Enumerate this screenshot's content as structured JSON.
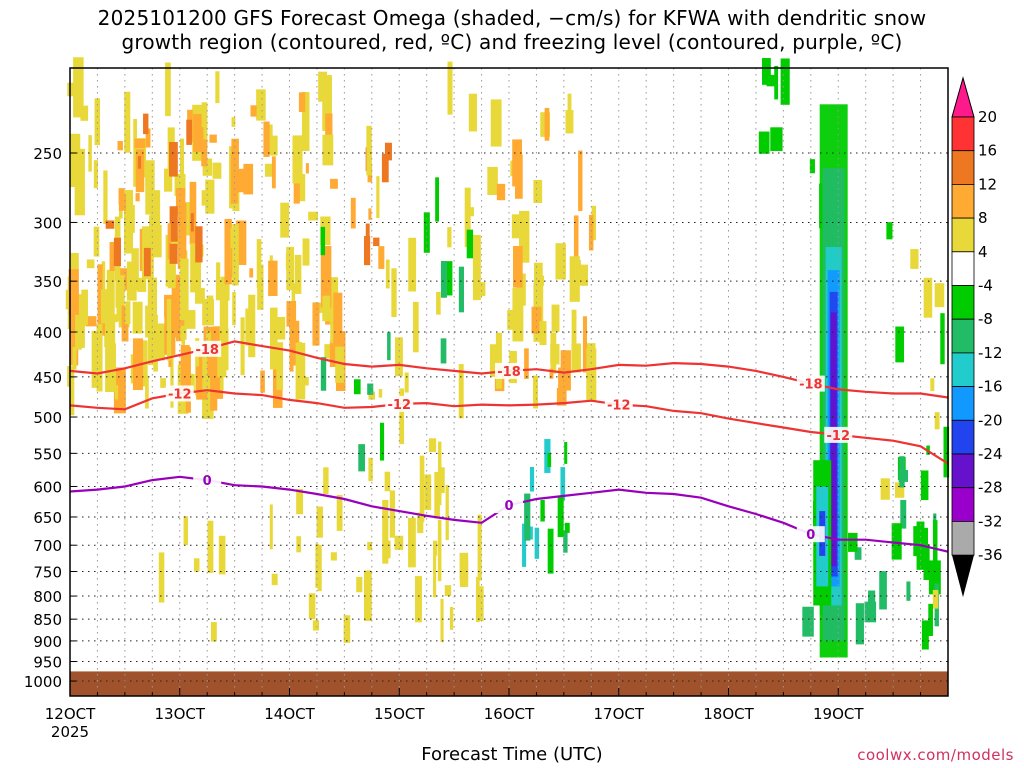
{
  "title": {
    "line1": "2025101200 GFS Forecast Omega (shaded, −cm/s) for KFWA with dendritic snow",
    "line2": "growth region (contoured, red, ºC) and freezing level (contoured, purple, ºC)"
  },
  "credit": "coolwx.com/models",
  "chart_data": {
    "type": "heatmap",
    "xlabel": "Forecast Time (UTC)",
    "x_ticks": [
      "12OCT",
      "13OCT",
      "14OCT",
      "15OCT",
      "16OCT",
      "17OCT",
      "18OCT",
      "19OCT"
    ],
    "x_year_label": "2025",
    "x_range_hours": [
      0,
      192
    ],
    "y_ticks": [
      250,
      300,
      350,
      400,
      450,
      500,
      550,
      600,
      650,
      700,
      750,
      800,
      850,
      900,
      950,
      1000
    ],
    "y_range_hPa": [
      200,
      1040
    ],
    "colorbar": {
      "ticks": [
        20,
        16,
        12,
        8,
        4,
        -4,
        -8,
        -12,
        -16,
        -20,
        -24,
        -28,
        -32,
        -36
      ],
      "colors": [
        "#ff1a8c",
        "#ff3333",
        "#ee7722",
        "#ffaa33",
        "#e8d83a",
        "#ffffff",
        "#00cc00",
        "#22bb66",
        "#22cccc",
        "#1199ff",
        "#2244ee",
        "#6611cc",
        "#9900cc",
        "#aaaaaa"
      ]
    },
    "contours": [
      {
        "kind": "dendritic",
        "color": "#ee3333",
        "labels": [
          "-18",
          "-18",
          "-18"
        ],
        "points": [
          [
            0,
            443
          ],
          [
            6,
            446
          ],
          [
            12,
            440
          ],
          [
            18,
            432
          ],
          [
            24,
            425
          ],
          [
            30,
            418
          ],
          [
            36,
            410
          ],
          [
            42,
            415
          ],
          [
            48,
            420
          ],
          [
            54,
            428
          ],
          [
            60,
            435
          ],
          [
            66,
            438
          ],
          [
            72,
            436
          ],
          [
            78,
            440
          ],
          [
            84,
            443
          ],
          [
            90,
            446
          ],
          [
            96,
            443
          ],
          [
            102,
            441
          ],
          [
            108,
            445
          ],
          [
            114,
            441
          ],
          [
            120,
            436
          ],
          [
            126,
            437
          ],
          [
            132,
            434
          ],
          [
            138,
            435
          ],
          [
            144,
            438
          ],
          [
            150,
            443
          ],
          [
            156,
            450
          ],
          [
            162,
            458
          ],
          [
            168,
            465
          ],
          [
            174,
            468
          ],
          [
            180,
            470
          ],
          [
            186,
            470
          ],
          [
            192,
            475
          ]
        ]
      },
      {
        "kind": "dendritic",
        "color": "#ee3333",
        "labels": [
          "-12",
          "-12",
          "-12",
          "-12"
        ],
        "points": [
          [
            0,
            485
          ],
          [
            6,
            488
          ],
          [
            12,
            490
          ],
          [
            18,
            476
          ],
          [
            24,
            470
          ],
          [
            30,
            466
          ],
          [
            36,
            470
          ],
          [
            42,
            472
          ],
          [
            48,
            478
          ],
          [
            54,
            482
          ],
          [
            60,
            488
          ],
          [
            66,
            487
          ],
          [
            72,
            483
          ],
          [
            78,
            482
          ],
          [
            84,
            486
          ],
          [
            90,
            484
          ],
          [
            96,
            485
          ],
          [
            102,
            484
          ],
          [
            108,
            482
          ],
          [
            114,
            479
          ],
          [
            120,
            484
          ],
          [
            126,
            486
          ],
          [
            132,
            492
          ],
          [
            138,
            495
          ],
          [
            144,
            502
          ],
          [
            150,
            508
          ],
          [
            156,
            514
          ],
          [
            162,
            520
          ],
          [
            168,
            524
          ],
          [
            174,
            528
          ],
          [
            180,
            532
          ],
          [
            186,
            540
          ],
          [
            192,
            565
          ]
        ]
      },
      {
        "kind": "freezing",
        "color": "#9900bb",
        "labels": [
          "0",
          "0",
          "0"
        ],
        "points": [
          [
            0,
            608
          ],
          [
            6,
            605
          ],
          [
            12,
            600
          ],
          [
            18,
            590
          ],
          [
            24,
            585
          ],
          [
            30,
            590
          ],
          [
            36,
            598
          ],
          [
            42,
            600
          ],
          [
            48,
            605
          ],
          [
            54,
            612
          ],
          [
            60,
            620
          ],
          [
            66,
            632
          ],
          [
            72,
            640
          ],
          [
            78,
            648
          ],
          [
            84,
            655
          ],
          [
            90,
            660
          ],
          [
            96,
            630
          ],
          [
            102,
            620
          ],
          [
            108,
            615
          ],
          [
            114,
            610
          ],
          [
            120,
            605
          ],
          [
            126,
            610
          ],
          [
            132,
            612
          ],
          [
            138,
            618
          ],
          [
            144,
            632
          ],
          [
            150,
            645
          ],
          [
            156,
            660
          ],
          [
            162,
            680
          ],
          [
            168,
            690
          ],
          [
            174,
            690
          ],
          [
            180,
            695
          ],
          [
            186,
            700
          ],
          [
            192,
            712
          ]
        ]
      }
    ]
  }
}
